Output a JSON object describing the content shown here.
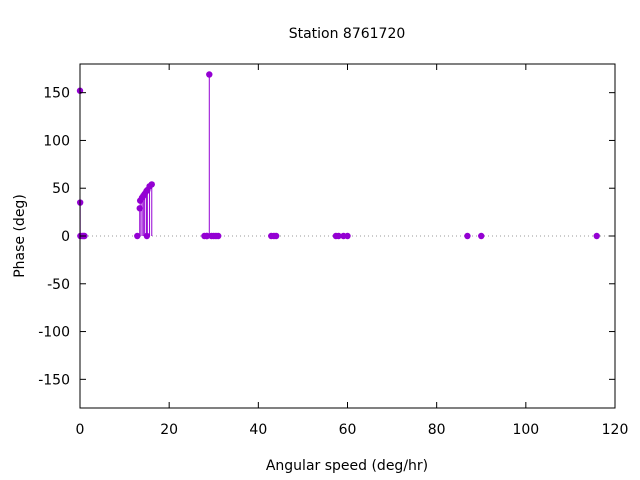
{
  "chart_data": {
    "type": "scatter",
    "style": "impulses",
    "title": "Station 8761720",
    "xlabel": "Angular speed (deg/hr)",
    "ylabel": "Phase (deg)",
    "xlim": [
      0,
      120
    ],
    "ylim": [
      -180,
      180
    ],
    "xticks": [
      0,
      20,
      40,
      60,
      80,
      100,
      120
    ],
    "yticks": [
      -150,
      -100,
      -50,
      0,
      50,
      100,
      150
    ],
    "grid": false,
    "zero_line": "dotted",
    "legend": "none",
    "color": "#9400d3",
    "points": [
      {
        "x": 0.0,
        "y": 152
      },
      {
        "x": 0.04,
        "y": 35
      },
      {
        "x": 0.08,
        "y": 0
      },
      {
        "x": 0.5,
        "y": 0
      },
      {
        "x": 0.8,
        "y": 0
      },
      {
        "x": 1.0,
        "y": 0
      },
      {
        "x": 12.85,
        "y": 0
      },
      {
        "x": 13.4,
        "y": 29
      },
      {
        "x": 13.5,
        "y": 37
      },
      {
        "x": 13.9,
        "y": 40
      },
      {
        "x": 14.2,
        "y": 42
      },
      {
        "x": 14.5,
        "y": 44
      },
      {
        "x": 14.9,
        "y": 47
      },
      {
        "x": 15.0,
        "y": 0
      },
      {
        "x": 15.1,
        "y": 48
      },
      {
        "x": 15.6,
        "y": 52
      },
      {
        "x": 16.1,
        "y": 54
      },
      {
        "x": 27.9,
        "y": 0
      },
      {
        "x": 28.4,
        "y": 0
      },
      {
        "x": 28.5,
        "y": 0
      },
      {
        "x": 29.0,
        "y": 169
      },
      {
        "x": 29.5,
        "y": 0
      },
      {
        "x": 30.0,
        "y": 0
      },
      {
        "x": 30.5,
        "y": 0
      },
      {
        "x": 31.0,
        "y": 0
      },
      {
        "x": 42.9,
        "y": 0
      },
      {
        "x": 43.5,
        "y": 0
      },
      {
        "x": 44.0,
        "y": 0
      },
      {
        "x": 57.4,
        "y": 0
      },
      {
        "x": 58.0,
        "y": 0
      },
      {
        "x": 59.1,
        "y": 0
      },
      {
        "x": 60.0,
        "y": 0
      },
      {
        "x": 86.9,
        "y": 0
      },
      {
        "x": 90.0,
        "y": 0
      },
      {
        "x": 115.9,
        "y": 0
      }
    ]
  }
}
